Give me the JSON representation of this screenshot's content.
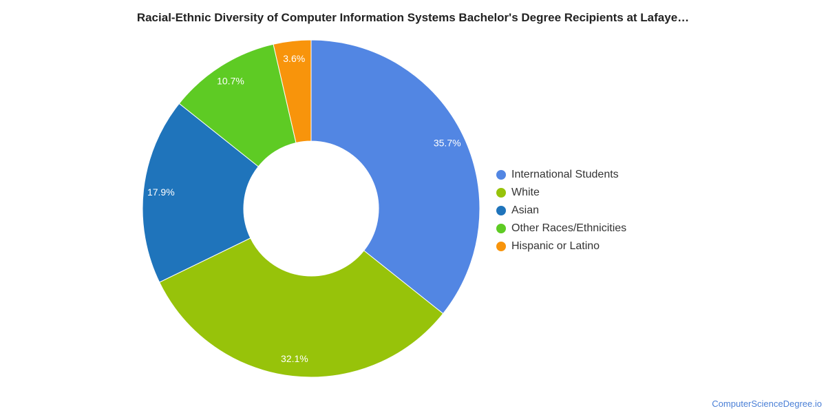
{
  "chart_data": {
    "type": "pie",
    "title": "Racial-Ethnic Diversity of Computer Information Systems Bachelor's Degree Recipients at Lafaye…",
    "categories": [
      "International Students",
      "White",
      "Asian",
      "Other Races/Ethnicities",
      "Hispanic or Latino"
    ],
    "values": [
      35.7,
      32.1,
      17.9,
      10.7,
      3.6
    ],
    "labels": [
      "35.7%",
      "32.1%",
      "17.9%",
      "10.7%",
      "3.6%"
    ],
    "colors": [
      "#5286e3",
      "#97c30a",
      "#1f74bb",
      "#5ecb24",
      "#f8940b"
    ],
    "donut": true,
    "legend_position": "right"
  },
  "footer": {
    "source": "ComputerScienceDegree.io"
  }
}
